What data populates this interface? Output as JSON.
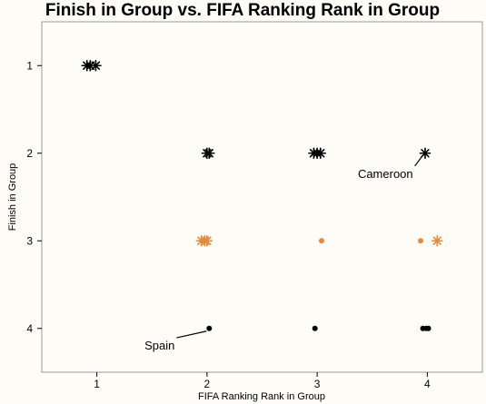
{
  "chart_data": {
    "type": "scatter",
    "title": "Finish in Group vs. FIFA Ranking Rank in Group",
    "xlabel": "FIFA Ranking Rank in Group",
    "ylabel": "Finish in Group",
    "xlim": [
      0.5,
      4.5
    ],
    "ylim": [
      0.5,
      4.5
    ],
    "y_reversed": true,
    "grid": false,
    "legend": "none",
    "x_ticks": [
      "1",
      "2",
      "3",
      "4"
    ],
    "y_ticks": [
      "1",
      "2",
      "3",
      "4"
    ],
    "colors": {
      "black": "#000000",
      "orange": "#e8883a"
    },
    "points": [
      {
        "x": 0.91,
        "y": 1,
        "marker": "star",
        "color": "black"
      },
      {
        "x": 0.94,
        "y": 1,
        "marker": "star",
        "color": "black"
      },
      {
        "x": 0.99,
        "y": 1,
        "marker": "star",
        "color": "black"
      },
      {
        "x": 2.0,
        "y": 2,
        "marker": "star",
        "color": "black"
      },
      {
        "x": 2.02,
        "y": 2,
        "marker": "star",
        "color": "black"
      },
      {
        "x": 2.97,
        "y": 2,
        "marker": "star",
        "color": "black"
      },
      {
        "x": 3.0,
        "y": 2,
        "marker": "star",
        "color": "black"
      },
      {
        "x": 3.03,
        "y": 2,
        "marker": "star",
        "color": "black"
      },
      {
        "x": 3.98,
        "y": 2,
        "marker": "star",
        "color": "black"
      },
      {
        "x": 1.95,
        "y": 3,
        "marker": "star",
        "color": "orange"
      },
      {
        "x": 1.98,
        "y": 3,
        "marker": "star",
        "color": "orange"
      },
      {
        "x": 2.0,
        "y": 3,
        "marker": "star",
        "color": "orange"
      },
      {
        "x": 3.04,
        "y": 3,
        "marker": "dot",
        "color": "orange"
      },
      {
        "x": 3.94,
        "y": 3,
        "marker": "dot",
        "color": "orange"
      },
      {
        "x": 4.09,
        "y": 3,
        "marker": "star",
        "color": "orange"
      },
      {
        "x": 2.02,
        "y": 4,
        "marker": "dot",
        "color": "black"
      },
      {
        "x": 2.98,
        "y": 4,
        "marker": "dot",
        "color": "black"
      },
      {
        "x": 3.96,
        "y": 4,
        "marker": "dot",
        "color": "black"
      },
      {
        "x": 3.99,
        "y": 4,
        "marker": "dot",
        "color": "black"
      },
      {
        "x": 4.01,
        "y": 4,
        "marker": "dot",
        "color": "black"
      }
    ],
    "annotations": [
      {
        "text": "Cameroon",
        "point": {
          "x": 3.98,
          "y": 2
        },
        "label_at": {
          "x": 3.62,
          "y": 2.23
        }
      },
      {
        "text": "Spain",
        "point": {
          "x": 2.02,
          "y": 4
        },
        "label_at": {
          "x": 1.57,
          "y": 4.19
        }
      }
    ]
  }
}
